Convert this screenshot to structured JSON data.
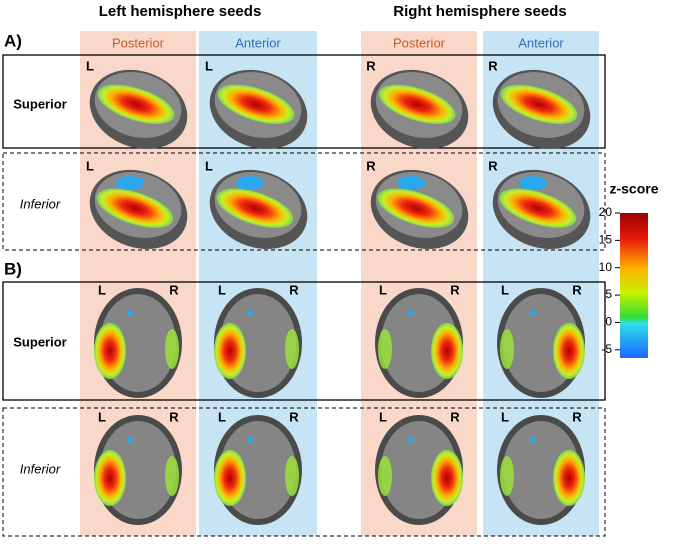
{
  "column_groups": [
    {
      "title": "Left hemisphere seeds",
      "columns": [
        "Posterior",
        "Anterior"
      ]
    },
    {
      "title": "Right hemisphere seeds",
      "columns": [
        "Posterior",
        "Anterior"
      ]
    }
  ],
  "panels": [
    {
      "label": "A)",
      "rows": [
        "Superior",
        "Inferior"
      ],
      "side_labels": [
        "L",
        "L",
        "R",
        "R"
      ]
    },
    {
      "label": "B)",
      "rows": [
        "Superior",
        "Inferior"
      ],
      "side_labels": [
        "L",
        "R"
      ]
    }
  ],
  "colorbar": {
    "title": "z-score",
    "lim": [
      -6.5,
      20
    ],
    "ticks": [
      20,
      15,
      10,
      5,
      0,
      -5
    ]
  }
}
